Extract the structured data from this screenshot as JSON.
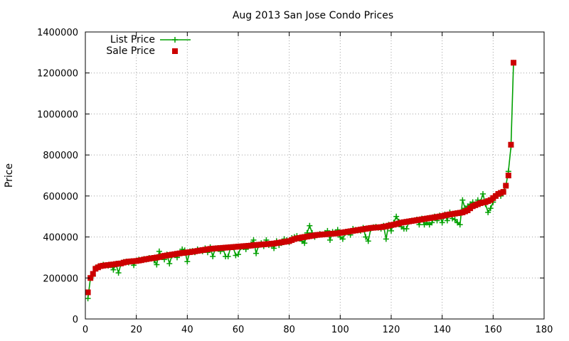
{
  "chart_data": {
    "type": "scatter",
    "title": "Aug 2013 San Jose Condo Prices",
    "xlabel": "",
    "ylabel": "Price",
    "xlim": [
      0,
      180
    ],
    "ylim": [
      0,
      1400000
    ],
    "x_ticks": [
      0,
      20,
      40,
      60,
      80,
      100,
      120,
      140,
      160,
      180
    ],
    "y_ticks": [
      0,
      200000,
      400000,
      600000,
      800000,
      1000000,
      1200000,
      1400000
    ],
    "grid": true,
    "legend_position": "top-left",
    "series": [
      {
        "name": "List Price",
        "style": "line-plus",
        "color": "#00a000",
        "x": [
          1,
          2,
          3,
          4,
          5,
          6,
          7,
          8,
          9,
          10,
          11,
          12,
          13,
          14,
          15,
          16,
          17,
          18,
          19,
          20,
          21,
          22,
          23,
          24,
          25,
          26,
          27,
          28,
          29,
          30,
          31,
          32,
          33,
          34,
          35,
          36,
          37,
          38,
          39,
          40,
          41,
          42,
          43,
          44,
          45,
          46,
          47,
          48,
          49,
          50,
          51,
          52,
          53,
          54,
          55,
          56,
          57,
          58,
          59,
          60,
          61,
          62,
          63,
          64,
          65,
          66,
          67,
          68,
          69,
          70,
          71,
          72,
          73,
          74,
          75,
          76,
          77,
          78,
          79,
          80,
          81,
          82,
          83,
          84,
          85,
          86,
          87,
          88,
          89,
          90,
          91,
          92,
          93,
          94,
          95,
          96,
          97,
          98,
          99,
          100,
          101,
          102,
          103,
          104,
          105,
          106,
          107,
          108,
          109,
          110,
          111,
          112,
          113,
          114,
          115,
          116,
          117,
          118,
          119,
          120,
          121,
          122,
          123,
          124,
          125,
          126,
          127,
          128,
          129,
          130,
          131,
          132,
          133,
          134,
          135,
          136,
          137,
          138,
          139,
          140,
          141,
          142,
          143,
          144,
          145,
          146,
          147,
          148,
          149,
          150,
          151,
          152,
          153,
          154,
          155,
          156,
          157,
          158,
          159,
          160,
          161,
          162,
          163,
          164,
          165,
          166,
          167,
          168
        ],
        "values": [
          100000,
          200000,
          210000,
          250000,
          255000,
          258000,
          265000,
          262000,
          260000,
          262000,
          240000,
          268000,
          225000,
          270000,
          278000,
          280000,
          275000,
          282000,
          262000,
          285000,
          290000,
          288000,
          293000,
          290000,
          298000,
          295000,
          285000,
          265000,
          330000,
          305000,
          290000,
          315000,
          270000,
          310000,
          312000,
          300000,
          320000,
          340000,
          335000,
          280000,
          330000,
          332000,
          325000,
          340000,
          335000,
          330000,
          345000,
          325000,
          350000,
          305000,
          345000,
          346000,
          330000,
          345000,
          305000,
          305000,
          350000,
          350000,
          310000,
          315000,
          350000,
          350000,
          340000,
          355000,
          365000,
          385000,
          320000,
          360000,
          370000,
          355000,
          385000,
          360000,
          362000,
          345000,
          380000,
          360000,
          370000,
          390000,
          385000,
          375000,
          395000,
          400000,
          405000,
          395000,
          380000,
          370000,
          420000,
          455000,
          420000,
          400000,
          410000,
          415000,
          412000,
          420000,
          430000,
          385000,
          425000,
          420000,
          435000,
          400000,
          390000,
          420000,
          425000,
          410000,
          440000,
          435000,
          432000,
          430000,
          445000,
          400000,
          380000,
          440000,
          448000,
          450000,
          445000,
          440000,
          455000,
          390000,
          460000,
          430000,
          470000,
          500000,
          475000,
          450000,
          440000,
          440000,
          475000,
          480000,
          480000,
          485000,
          460000,
          490000,
          460000,
          470000,
          460000,
          470000,
          500000,
          480000,
          505000,
          470000,
          510000,
          480000,
          520000,
          490000,
          485000,
          470000,
          460000,
          580000,
          540000,
          550000,
          560000,
          570000,
          555000,
          580000,
          570000,
          610000,
          560000,
          520000,
          540000,
          570000,
          600000,
          610000,
          600000,
          620000,
          650000,
          720000,
          840000,
          1250000
        ]
      },
      {
        "name": "Sale Price",
        "style": "square",
        "color": "#cc0000",
        "x": [
          1,
          2,
          3,
          4,
          5,
          6,
          7,
          8,
          9,
          10,
          11,
          12,
          13,
          14,
          15,
          16,
          17,
          18,
          19,
          20,
          21,
          22,
          23,
          24,
          25,
          26,
          27,
          28,
          29,
          30,
          31,
          32,
          33,
          34,
          35,
          36,
          37,
          38,
          39,
          40,
          41,
          42,
          43,
          44,
          45,
          46,
          47,
          48,
          49,
          50,
          51,
          52,
          53,
          54,
          55,
          56,
          57,
          58,
          59,
          60,
          61,
          62,
          63,
          64,
          65,
          66,
          67,
          68,
          69,
          70,
          71,
          72,
          73,
          74,
          75,
          76,
          77,
          78,
          79,
          80,
          81,
          82,
          83,
          84,
          85,
          86,
          87,
          88,
          89,
          90,
          91,
          92,
          93,
          94,
          95,
          96,
          97,
          98,
          99,
          100,
          101,
          102,
          103,
          104,
          105,
          106,
          107,
          108,
          109,
          110,
          111,
          112,
          113,
          114,
          115,
          116,
          117,
          118,
          119,
          120,
          121,
          122,
          123,
          124,
          125,
          126,
          127,
          128,
          129,
          130,
          131,
          132,
          133,
          134,
          135,
          136,
          137,
          138,
          139,
          140,
          141,
          142,
          143,
          144,
          145,
          146,
          147,
          148,
          149,
          150,
          151,
          152,
          153,
          154,
          155,
          156,
          157,
          158,
          159,
          160,
          161,
          162,
          163,
          164,
          165,
          166,
          167,
          168
        ],
        "values": [
          130000,
          200000,
          220000,
          245000,
          252000,
          258000,
          260000,
          262000,
          263000,
          265000,
          266000,
          268000,
          270000,
          271000,
          275000,
          278000,
          280000,
          281000,
          282000,
          283000,
          285000,
          287000,
          290000,
          292000,
          294000,
          296000,
          298000,
          300000,
          302000,
          305000,
          308000,
          310000,
          312000,
          314000,
          316000,
          318000,
          320000,
          322000,
          323000,
          325000,
          326000,
          328000,
          330000,
          332000,
          334000,
          336000,
          338000,
          340000,
          342000,
          343000,
          344000,
          345000,
          346000,
          347000,
          348000,
          349000,
          350000,
          351000,
          352000,
          353000,
          354000,
          355000,
          356000,
          357000,
          358000,
          360000,
          361000,
          362000,
          363000,
          364000,
          365000,
          366000,
          367000,
          368000,
          370000,
          372000,
          374000,
          376000,
          378000,
          380000,
          385000,
          390000,
          393000,
          395000,
          398000,
          400000,
          402000,
          404000,
          406000,
          408000,
          410000,
          411000,
          412000,
          413000,
          414000,
          415000,
          416000,
          417000,
          418000,
          420000,
          422000,
          424000,
          426000,
          428000,
          430000,
          432000,
          434000,
          436000,
          438000,
          440000,
          442000,
          444000,
          445000,
          446000,
          447000,
          448000,
          450000,
          452000,
          455000,
          458000,
          460000,
          463000,
          466000,
          470000,
          472000,
          474000,
          476000,
          478000,
          480000,
          482000,
          484000,
          486000,
          488000,
          490000,
          492000,
          494000,
          496000,
          498000,
          500000,
          502000,
          505000,
          508000,
          510000,
          512000,
          514000,
          516000,
          518000,
          520000,
          525000,
          530000,
          540000,
          550000,
          555000,
          560000,
          565000,
          568000,
          570000,
          575000,
          580000,
          590000,
          600000,
          610000,
          615000,
          620000,
          650000,
          700000,
          850000,
          1250000
        ]
      }
    ]
  }
}
